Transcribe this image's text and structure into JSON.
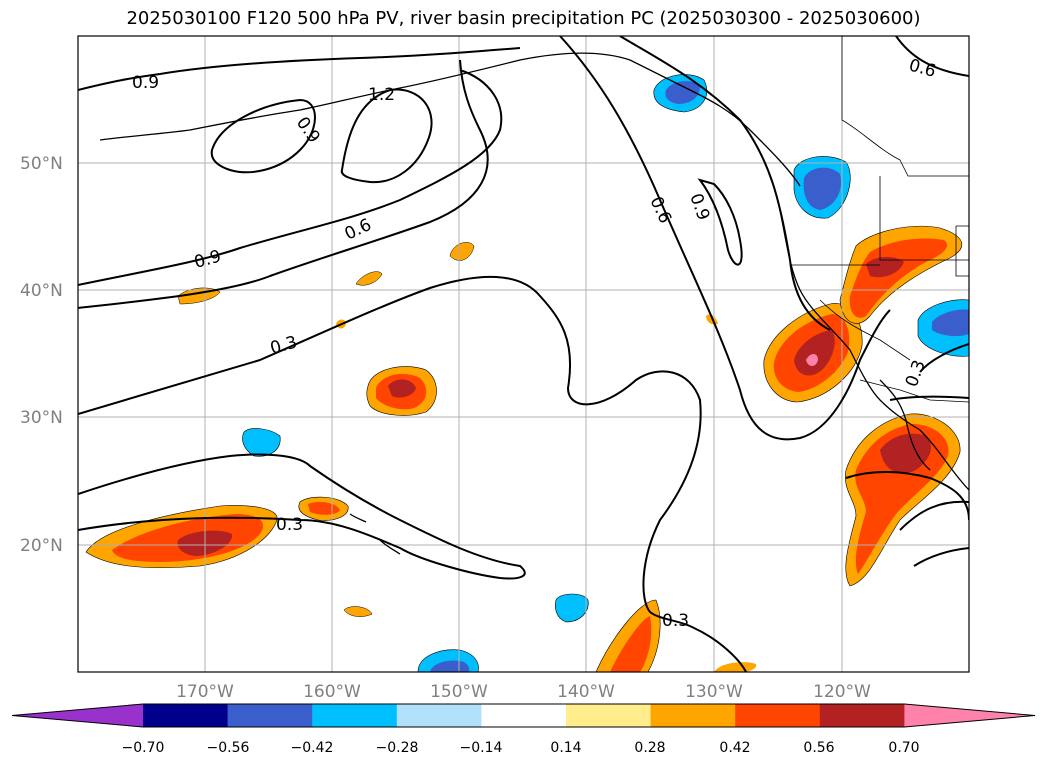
{
  "title": "2025030100 F120 500 hPa PV, river basin precipitation PC (2025030300 - 2025030600)",
  "lat_labels": [
    "50°N",
    "40°N",
    "30°N",
    "20°N"
  ],
  "lon_labels": [
    "170°W",
    "160°W",
    "150°W",
    "140°W",
    "130°W",
    "120°W"
  ],
  "contour_labels": [
    "0.9",
    "1.2",
    "0.9",
    "0.6",
    "0.9",
    "0.6",
    "0.9",
    "0.6",
    "0.3",
    "0.3",
    "0.3",
    "0.3"
  ],
  "colorbar": {
    "tick_labels": [
      "−0.70",
      "−0.56",
      "−0.42",
      "−0.28",
      "−0.14",
      "0.14",
      "0.28",
      "0.42",
      "0.56",
      "0.70"
    ],
    "colors": [
      "#9932cc",
      "#00008b",
      "#3a5fcd",
      "#00bfff",
      "#b0e0fa",
      "#ffffff",
      "#ffec8b",
      "#ffa500",
      "#ff4500",
      "#b22222",
      "#ff82ab"
    ]
  }
}
